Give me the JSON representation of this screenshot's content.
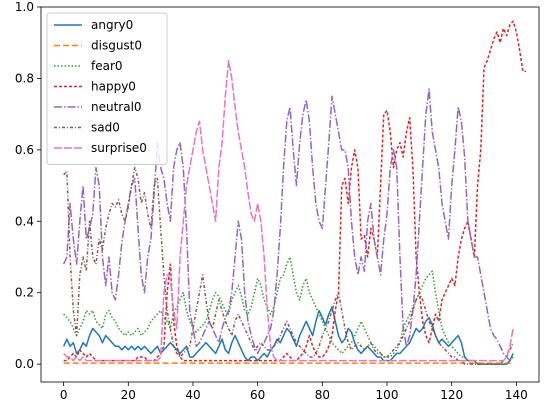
{
  "chart_data": {
    "type": "line",
    "title": "",
    "xlabel": "",
    "ylabel": "",
    "xlim": [
      -7,
      147
    ],
    "ylim": [
      -0.05,
      1.0
    ],
    "xticks": [
      0,
      20,
      40,
      60,
      80,
      100,
      120,
      140
    ],
    "xtick_labels": [
      "0",
      "20",
      "40",
      "60",
      "80",
      "100",
      "120",
      "140"
    ],
    "yticks": [
      0.0,
      0.2,
      0.4,
      0.6,
      0.8,
      1.0
    ],
    "ytick_labels": [
      "0.0",
      "0.2",
      "0.4",
      "0.6",
      "0.8",
      "1.0"
    ],
    "grid": false,
    "legend_position": "upper-left",
    "series": [
      {
        "name": "angry0",
        "color": "#1f77b4",
        "dash": "solid",
        "values": [
          0.05,
          0.07,
          0.05,
          0.06,
          0.03,
          0.04,
          0.06,
          0.05,
          0.08,
          0.1,
          0.09,
          0.08,
          0.06,
          0.08,
          0.07,
          0.06,
          0.05,
          0.05,
          0.04,
          0.05,
          0.04,
          0.05,
          0.04,
          0.05,
          0.04,
          0.05,
          0.04,
          0.03,
          0.04,
          0.05,
          0.03,
          0.04,
          0.05,
          0.06,
          0.05,
          0.04,
          0.03,
          0.04,
          0.05,
          0.02,
          0.02,
          0.03,
          0.04,
          0.05,
          0.06,
          0.05,
          0.04,
          0.03,
          0.05,
          0.07,
          0.04,
          0.03,
          0.06,
          0.08,
          0.06,
          0.04,
          0.02,
          0.01,
          0.02,
          0.02,
          0.01,
          0.02,
          0.03,
          0.02,
          0.04,
          0.05,
          0.07,
          0.06,
          0.08,
          0.1,
          0.09,
          0.07,
          0.05,
          0.08,
          0.1,
          0.12,
          0.1,
          0.08,
          0.12,
          0.15,
          0.13,
          0.11,
          0.14,
          0.16,
          0.12,
          0.08,
          0.06,
          0.07,
          0.1,
          0.09,
          0.06,
          0.04,
          0.03,
          0.04,
          0.05,
          0.04,
          0.03,
          0.02,
          0.02,
          0.01,
          0.01,
          0.01,
          0.02,
          0.03,
          0.03,
          0.04,
          0.05,
          0.06,
          0.08,
          0.1,
          0.09,
          0.1,
          0.12,
          0.13,
          0.11,
          0.08,
          0.06,
          0.07,
          0.06,
          0.05,
          0.06,
          0.07,
          0.08,
          0.06,
          0.02,
          0.01,
          0.01,
          0.01,
          0.0,
          0.0,
          0.0,
          0.0,
          0.0,
          0.0,
          0.0,
          0.0,
          0.0,
          0.0,
          0.01,
          0.03
        ]
      },
      {
        "name": "disgust0",
        "color": "#ff7f0e",
        "dash": "6 3",
        "values": [
          0.003,
          0.003,
          0.003,
          0.003,
          0.003,
          0.003,
          0.003,
          0.003,
          0.003,
          0.003,
          0.003,
          0.003,
          0.003,
          0.003,
          0.003,
          0.003,
          0.003,
          0.003,
          0.003,
          0.003,
          0.003,
          0.003,
          0.003,
          0.003,
          0.003,
          0.003,
          0.003,
          0.003,
          0.003,
          0.003,
          0.003,
          0.003,
          0.003,
          0.003,
          0.003,
          0.003,
          0.003,
          0.003,
          0.003,
          0.003,
          0.003,
          0.003,
          0.003,
          0.003,
          0.003,
          0.003,
          0.003,
          0.003,
          0.003,
          0.003,
          0.003,
          0.003,
          0.003,
          0.003,
          0.003,
          0.003,
          0.003,
          0.003,
          0.003,
          0.003,
          0.003,
          0.003,
          0.003,
          0.003,
          0.003,
          0.003,
          0.003,
          0.003,
          0.003,
          0.003,
          0.003,
          0.003,
          0.003,
          0.003,
          0.003,
          0.003,
          0.003,
          0.003,
          0.003,
          0.003,
          0.003,
          0.003,
          0.003,
          0.003,
          0.003,
          0.003,
          0.003,
          0.003,
          0.003,
          0.003,
          0.003,
          0.003,
          0.003,
          0.003,
          0.003,
          0.003,
          0.003,
          0.003,
          0.003,
          0.003,
          0.003,
          0.003,
          0.003,
          0.003,
          0.003,
          0.003,
          0.003,
          0.003,
          0.003,
          0.003,
          0.003,
          0.003,
          0.003,
          0.003,
          0.003,
          0.003,
          0.003,
          0.003,
          0.003,
          0.003,
          0.003,
          0.003,
          0.003,
          0.003,
          0.003,
          0.003,
          0.003,
          0.003,
          0.003,
          0.003,
          0.003,
          0.003,
          0.003,
          0.003,
          0.003,
          0.003,
          0.003,
          0.003,
          0.003,
          0.003
        ]
      },
      {
        "name": "fear0",
        "color": "#2ca02c",
        "dash": "1.5 2",
        "values": [
          0.14,
          0.13,
          0.12,
          0.1,
          0.08,
          0.1,
          0.12,
          0.15,
          0.14,
          0.15,
          0.12,
          0.11,
          0.1,
          0.14,
          0.15,
          0.13,
          0.12,
          0.1,
          0.09,
          0.08,
          0.09,
          0.08,
          0.09,
          0.1,
          0.08,
          0.09,
          0.1,
          0.12,
          0.13,
          0.14,
          0.15,
          0.13,
          0.12,
          0.1,
          0.14,
          0.16,
          0.18,
          0.2,
          0.15,
          0.12,
          0.1,
          0.09,
          0.1,
          0.11,
          0.12,
          0.15,
          0.18,
          0.2,
          0.19,
          0.17,
          0.15,
          0.14,
          0.18,
          0.2,
          0.22,
          0.19,
          0.15,
          0.14,
          0.16,
          0.2,
          0.24,
          0.22,
          0.18,
          0.16,
          0.14,
          0.16,
          0.2,
          0.24,
          0.25,
          0.28,
          0.3,
          0.25,
          0.2,
          0.18,
          0.22,
          0.24,
          0.2,
          0.18,
          0.16,
          0.14,
          0.12,
          0.1,
          0.08,
          0.06,
          0.05,
          0.04,
          0.03,
          0.04,
          0.05,
          0.06,
          0.08,
          0.1,
          0.12,
          0.1,
          0.08,
          0.06,
          0.05,
          0.04,
          0.03,
          0.02,
          0.02,
          0.02,
          0.03,
          0.04,
          0.06,
          0.1,
          0.12,
          0.14,
          0.16,
          0.18,
          0.2,
          0.22,
          0.24,
          0.25,
          0.26,
          0.2,
          0.15,
          0.1,
          0.08,
          0.06,
          0.05,
          0.04,
          0.03,
          0.02,
          0.02,
          0.01,
          0.01,
          0.01,
          0.0,
          0.0,
          0.0,
          0.0,
          0.0,
          0.0,
          0.0,
          0.0,
          0.0,
          0.0,
          0.01,
          0.02
        ]
      },
      {
        "name": "happy0",
        "color": "#d62728",
        "dash": "3 2",
        "values": [
          0.01,
          0.01,
          0.02,
          0.03,
          0.02,
          0.04,
          0.03,
          0.02,
          0.03,
          0.02,
          0.01,
          0.01,
          0.01,
          0.01,
          0.01,
          0.01,
          0.01,
          0.01,
          0.01,
          0.01,
          0.01,
          0.01,
          0.01,
          0.02,
          0.02,
          0.02,
          0.01,
          0.01,
          0.01,
          0.02,
          0.03,
          0.05,
          0.2,
          0.28,
          0.12,
          0.05,
          0.02,
          0.01,
          0.01,
          0.01,
          0.01,
          0.01,
          0.01,
          0.01,
          0.01,
          0.01,
          0.01,
          0.01,
          0.01,
          0.01,
          0.01,
          0.01,
          0.01,
          0.01,
          0.01,
          0.01,
          0.01,
          0.01,
          0.01,
          0.01,
          0.01,
          0.01,
          0.01,
          0.01,
          0.01,
          0.01,
          0.01,
          0.01,
          0.02,
          0.03,
          0.02,
          0.01,
          0.01,
          0.02,
          0.03,
          0.05,
          0.08,
          0.05,
          0.03,
          0.02,
          0.02,
          0.03,
          0.05,
          0.08,
          0.15,
          0.2,
          0.5,
          0.52,
          0.45,
          0.55,
          0.6,
          0.55,
          0.35,
          0.36,
          0.3,
          0.38,
          0.35,
          0.3,
          0.5,
          0.7,
          0.71,
          0.65,
          0.55,
          0.6,
          0.62,
          0.58,
          0.65,
          0.69,
          0.55,
          0.3,
          0.2,
          0.12,
          0.08,
          0.06,
          0.1,
          0.14,
          0.12,
          0.18,
          0.2,
          0.22,
          0.24,
          0.22,
          0.3,
          0.35,
          0.38,
          0.4,
          0.35,
          0.3,
          0.5,
          0.6,
          0.83,
          0.85,
          0.88,
          0.91,
          0.93,
          0.9,
          0.94,
          0.92,
          0.95,
          0.96,
          0.93,
          0.88,
          0.82,
          0.82
        ]
      },
      {
        "name": "neutral0",
        "color": "#9467bd",
        "dash": "8 2 1.5 2",
        "values": [
          0.28,
          0.3,
          0.45,
          0.35,
          0.28,
          0.4,
          0.5,
          0.35,
          0.38,
          0.42,
          0.55,
          0.5,
          0.3,
          0.22,
          0.3,
          0.2,
          0.18,
          0.25,
          0.34,
          0.4,
          0.45,
          0.5,
          0.52,
          0.38,
          0.25,
          0.2,
          0.3,
          0.35,
          0.48,
          0.62,
          0.55,
          0.52,
          0.45,
          0.4,
          0.55,
          0.6,
          0.62,
          0.55,
          0.38,
          0.15,
          0.1,
          0.05,
          0.06,
          0.08,
          0.1,
          0.12,
          0.1,
          0.08,
          0.06,
          0.1,
          0.13,
          0.15,
          0.2,
          0.3,
          0.4,
          0.35,
          0.2,
          0.12,
          0.08,
          0.05,
          0.03,
          0.05,
          0.06,
          0.08,
          0.1,
          0.15,
          0.25,
          0.38,
          0.55,
          0.68,
          0.72,
          0.6,
          0.5,
          0.62,
          0.7,
          0.74,
          0.68,
          0.55,
          0.45,
          0.4,
          0.38,
          0.5,
          0.62,
          0.75,
          0.7,
          0.65,
          0.6,
          0.6,
          0.55,
          0.4,
          0.3,
          0.25,
          0.3,
          0.26,
          0.4,
          0.45,
          0.35,
          0.3,
          0.25,
          0.35,
          0.42,
          0.55,
          0.6,
          0.55,
          0.3,
          0.1,
          0.05,
          0.08,
          0.15,
          0.25,
          0.4,
          0.55,
          0.7,
          0.77,
          0.65,
          0.6,
          0.55,
          0.45,
          0.4,
          0.35,
          0.5,
          0.6,
          0.72,
          0.68,
          0.58,
          0.4,
          0.35,
          0.3,
          0.3,
          0.25,
          0.2,
          0.15,
          0.1,
          0.08,
          0.07,
          0.05,
          0.03,
          0.02,
          0.01,
          0.01
        ]
      },
      {
        "name": "sad0",
        "color": "#8c564b",
        "dash": "3 2 1 2",
        "values": [
          0.53,
          0.54,
          0.3,
          0.15,
          0.08,
          0.25,
          0.3,
          0.26,
          0.4,
          0.3,
          0.28,
          0.35,
          0.32,
          0.38,
          0.42,
          0.45,
          0.44,
          0.46,
          0.42,
          0.4,
          0.44,
          0.5,
          0.55,
          0.52,
          0.45,
          0.48,
          0.42,
          0.38,
          0.5,
          0.52,
          0.38,
          0.25,
          0.15,
          0.1,
          0.05,
          0.03,
          0.02,
          0.03,
          0.04,
          0.05,
          0.1,
          0.15,
          0.2,
          0.25,
          0.18,
          0.12,
          0.1,
          0.14,
          0.18,
          0.15,
          0.12,
          0.1,
          0.08,
          0.12,
          0.14,
          0.12,
          0.1,
          0.08,
          0.06,
          0.04,
          0.05,
          0.06,
          0.05,
          0.04,
          0.04,
          0.05,
          0.06,
          0.08,
          0.1,
          0.12,
          0.1,
          0.08,
          0.06,
          0.05,
          0.04,
          0.03,
          0.02,
          0.02,
          0.03,
          0.05,
          0.08,
          0.1,
          0.12,
          0.15,
          0.18,
          0.2,
          0.15,
          0.1,
          0.06,
          0.04,
          0.05,
          0.06,
          0.05,
          0.04,
          0.05,
          0.06,
          0.04,
          0.03,
          0.03,
          0.02,
          0.02,
          0.03,
          0.04,
          0.05,
          0.06,
          0.08,
          0.1,
          0.12,
          0.15,
          0.18,
          0.2,
          0.18,
          0.15,
          0.12,
          0.1,
          0.08,
          0.06,
          0.05,
          0.04,
          0.03,
          0.02,
          0.02,
          0.01,
          0.01,
          0.0,
          0.0,
          0.0,
          0.0,
          0.0,
          0.0,
          0.0,
          0.0,
          0.0,
          0.0,
          0.0,
          0.0,
          0.01,
          0.02,
          0.04,
          0.06
        ]
      },
      {
        "name": "surprise0",
        "color": "#e377c2",
        "dash": "8 2",
        "values": [
          0.03,
          0.02,
          0.02,
          0.01,
          0.02,
          0.01,
          0.02,
          0.01,
          0.01,
          0.01,
          0.01,
          0.01,
          0.01,
          0.01,
          0.01,
          0.01,
          0.01,
          0.01,
          0.01,
          0.01,
          0.01,
          0.01,
          0.01,
          0.01,
          0.01,
          0.01,
          0.01,
          0.01,
          0.01,
          0.01,
          0.02,
          0.2,
          0.25,
          0.24,
          0.15,
          0.1,
          0.3,
          0.4,
          0.5,
          0.55,
          0.6,
          0.65,
          0.68,
          0.6,
          0.55,
          0.5,
          0.45,
          0.4,
          0.55,
          0.62,
          0.75,
          0.85,
          0.8,
          0.72,
          0.65,
          0.6,
          0.55,
          0.48,
          0.42,
          0.4,
          0.45,
          0.4,
          0.3,
          0.15,
          0.05,
          0.02,
          0.01,
          0.01,
          0.01,
          0.01,
          0.01,
          0.01,
          0.01,
          0.01,
          0.01,
          0.01,
          0.01,
          0.01,
          0.01,
          0.01,
          0.01,
          0.01,
          0.01,
          0.01,
          0.01,
          0.01,
          0.01,
          0.01,
          0.01,
          0.01,
          0.01,
          0.01,
          0.01,
          0.01,
          0.01,
          0.01,
          0.01,
          0.01,
          0.01,
          0.01,
          0.01,
          0.01,
          0.01,
          0.01,
          0.01,
          0.01,
          0.01,
          0.01,
          0.01,
          0.01,
          0.01,
          0.01,
          0.01,
          0.01,
          0.01,
          0.01,
          0.01,
          0.01,
          0.01,
          0.01,
          0.01,
          0.01,
          0.01,
          0.01,
          0.01,
          0.01,
          0.01,
          0.01,
          0.01,
          0.01,
          0.01,
          0.01,
          0.01,
          0.01,
          0.01,
          0.01,
          0.01,
          0.02,
          0.05,
          0.1
        ]
      }
    ]
  }
}
